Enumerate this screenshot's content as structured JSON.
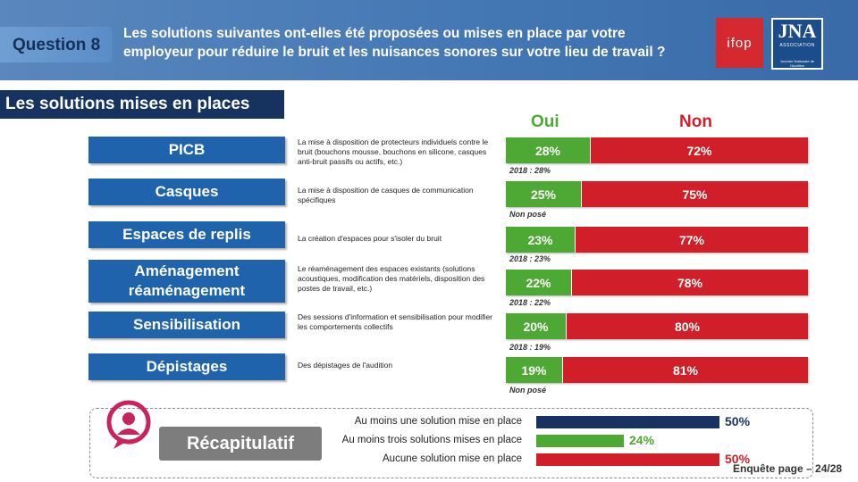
{
  "header": {
    "question_label": "Question 8",
    "question_text": "Les solutions suivantes ont-elles été proposées ou mises en place par votre employeur pour réduire le bruit et les nuisances sonores sur votre lieu de travail ?",
    "logo_ifop": "ifop",
    "logo_jna": "JNA",
    "logo_jna_assoc": "ASSOCIATION",
    "logo_jna_tag": "Journée Nationale de l'Audition"
  },
  "section_title": "Les solutions mises en places",
  "footer": "Enquête page – 24/28",
  "colors": {
    "oui": "#4ea834",
    "non": "#d01f28",
    "category": "#1f63ad",
    "header": "#4276b3",
    "recap_dark": "#16335f"
  },
  "chart_data": [
    {
      "type": "bar",
      "stacked": true,
      "orientation": "horizontal",
      "legend": [
        "Oui",
        "Non"
      ],
      "categories": [
        {
          "name": "PICB",
          "description": "La mise à disposition de protecteurs individuels contre le bruit (bouchons mousse, bouchons en silicone, casques anti-bruit passifs ou actifs, etc.)",
          "note": "2018 : 28%"
        },
        {
          "name": "Casques",
          "description": "La mise à disposition de casques de communication spécifiques",
          "note": "Non posé"
        },
        {
          "name": "Espaces de replis",
          "description": "La création d'espaces pour s'isoler du bruit",
          "note": "2018 :  23%"
        },
        {
          "name": "Aménagement réaménagement",
          "description": "Le réaménagement des espaces existants (solutions acoustiques, modification des matériels, disposition des postes de travail, etc.)",
          "note": "2018 : 22%"
        },
        {
          "name": "Sensibilisation",
          "description": "Des sessions d'information et sensibilisation pour modifier les comportements collectifs",
          "note": "2018 : 19%"
        },
        {
          "name": "Dépistages",
          "description": "Des dépistages de l'audition",
          "note": "Non posé"
        }
      ],
      "series": [
        {
          "name": "Oui",
          "values": [
            28,
            25,
            23,
            22,
            20,
            19
          ],
          "labels": [
            "28%",
            "25%",
            "23%",
            "22%",
            "20%",
            "19%"
          ]
        },
        {
          "name": "Non",
          "values": [
            72,
            75,
            77,
            78,
            80,
            81
          ],
          "labels": [
            "72%",
            "75%",
            "77%",
            "78%",
            "80%",
            "81%"
          ]
        }
      ]
    },
    {
      "type": "bar",
      "orientation": "horizontal",
      "title": "Récapitulatif",
      "categories": [
        "Au moins une solution mise en place",
        "Au moins trois solutions mises en place",
        "Aucune solution mise en place"
      ],
      "values": [
        50,
        24,
        50
      ],
      "labels": [
        "50%",
        "24%",
        "50%"
      ],
      "colors": [
        "#16335f",
        "#4ea834",
        "#d01f28"
      ]
    }
  ]
}
